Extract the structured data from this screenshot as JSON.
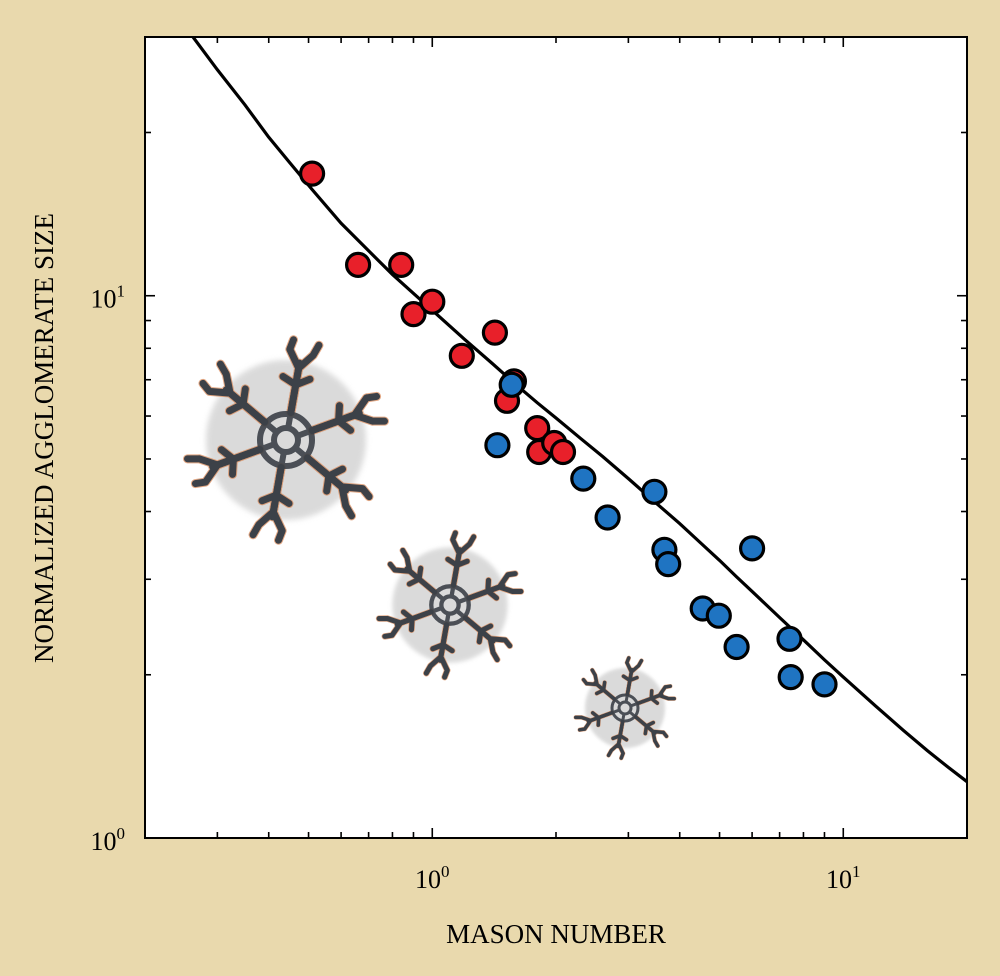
{
  "chart_data": {
    "type": "scatter",
    "title": "",
    "xlabel": "MASON NUMBER",
    "ylabel": "NORMALIZED AGGLOMERATE SIZE",
    "x_scale": "log",
    "y_scale": "log",
    "xlim": [
      0.2,
      20
    ],
    "ylim": [
      1,
      30
    ],
    "grid": false,
    "legend": "none",
    "x_ticks": [
      {
        "value": 1,
        "base": "10",
        "exp": "0"
      },
      {
        "value": 10,
        "base": "10",
        "exp": "1"
      }
    ],
    "y_ticks": [
      {
        "value": 1,
        "base": "10",
        "exp": "0"
      },
      {
        "value": 10,
        "base": "10",
        "exp": "1"
      }
    ],
    "series": [
      {
        "color": "#e8202a",
        "points": [
          {
            "x": 0.51,
            "y": 16.8
          },
          {
            "x": 0.66,
            "y": 11.4
          },
          {
            "x": 0.84,
            "y": 11.4
          },
          {
            "x": 0.9,
            "y": 9.25
          },
          {
            "x": 1.0,
            "y": 9.75
          },
          {
            "x": 1.18,
            "y": 7.75
          },
          {
            "x": 1.42,
            "y": 8.55
          },
          {
            "x": 1.58,
            "y": 6.95
          },
          {
            "x": 1.52,
            "y": 6.4
          },
          {
            "x": 1.8,
            "y": 5.7
          },
          {
            "x": 1.82,
            "y": 5.15
          },
          {
            "x": 1.98,
            "y": 5.35
          },
          {
            "x": 2.08,
            "y": 5.15
          }
        ]
      },
      {
        "color": "#1f74c2",
        "points": [
          {
            "x": 1.56,
            "y": 6.85
          },
          {
            "x": 1.44,
            "y": 5.3
          },
          {
            "x": 2.33,
            "y": 4.6
          },
          {
            "x": 2.67,
            "y": 3.9
          },
          {
            "x": 3.47,
            "y": 4.35
          },
          {
            "x": 3.67,
            "y": 3.4
          },
          {
            "x": 3.75,
            "y": 3.2
          },
          {
            "x": 4.55,
            "y": 2.65
          },
          {
            "x": 4.98,
            "y": 2.57
          },
          {
            "x": 5.5,
            "y": 2.25
          },
          {
            "x": 6.0,
            "y": 3.42
          },
          {
            "x": 7.4,
            "y": 2.33
          },
          {
            "x": 7.45,
            "y": 1.98
          },
          {
            "x": 9.0,
            "y": 1.92
          }
        ]
      }
    ],
    "fit_curve": {
      "color": "#000000",
      "x": [
        0.26,
        0.3,
        0.35,
        0.4,
        0.45,
        0.51,
        0.6,
        0.7,
        0.8,
        0.9,
        1.0,
        1.2,
        1.4,
        1.6,
        1.8,
        2.0,
        2.3,
        2.6,
        3.0,
        3.5,
        4.0,
        4.5,
        5.0,
        5.5,
        6.0,
        7.0,
        8.0,
        9.0,
        10.0,
        12.0,
        14.0,
        16.0,
        18.0,
        20.0
      ],
      "y": [
        30.2,
        26.1,
        22.5,
        19.6,
        17.6,
        15.7,
        13.6,
        12.1,
        10.95,
        10.1,
        9.4,
        8.3,
        7.5,
        6.85,
        6.35,
        5.95,
        5.45,
        5.05,
        4.6,
        4.15,
        3.8,
        3.5,
        3.25,
        3.03,
        2.85,
        2.55,
        2.32,
        2.13,
        1.98,
        1.75,
        1.58,
        1.45,
        1.35,
        1.27
      ]
    },
    "insets": [
      {
        "name": "large-agglomerate",
        "scale": 1.0
      },
      {
        "name": "medium-agglomerate",
        "scale": 0.72
      },
      {
        "name": "small-agglomerate",
        "scale": 0.5
      }
    ]
  }
}
